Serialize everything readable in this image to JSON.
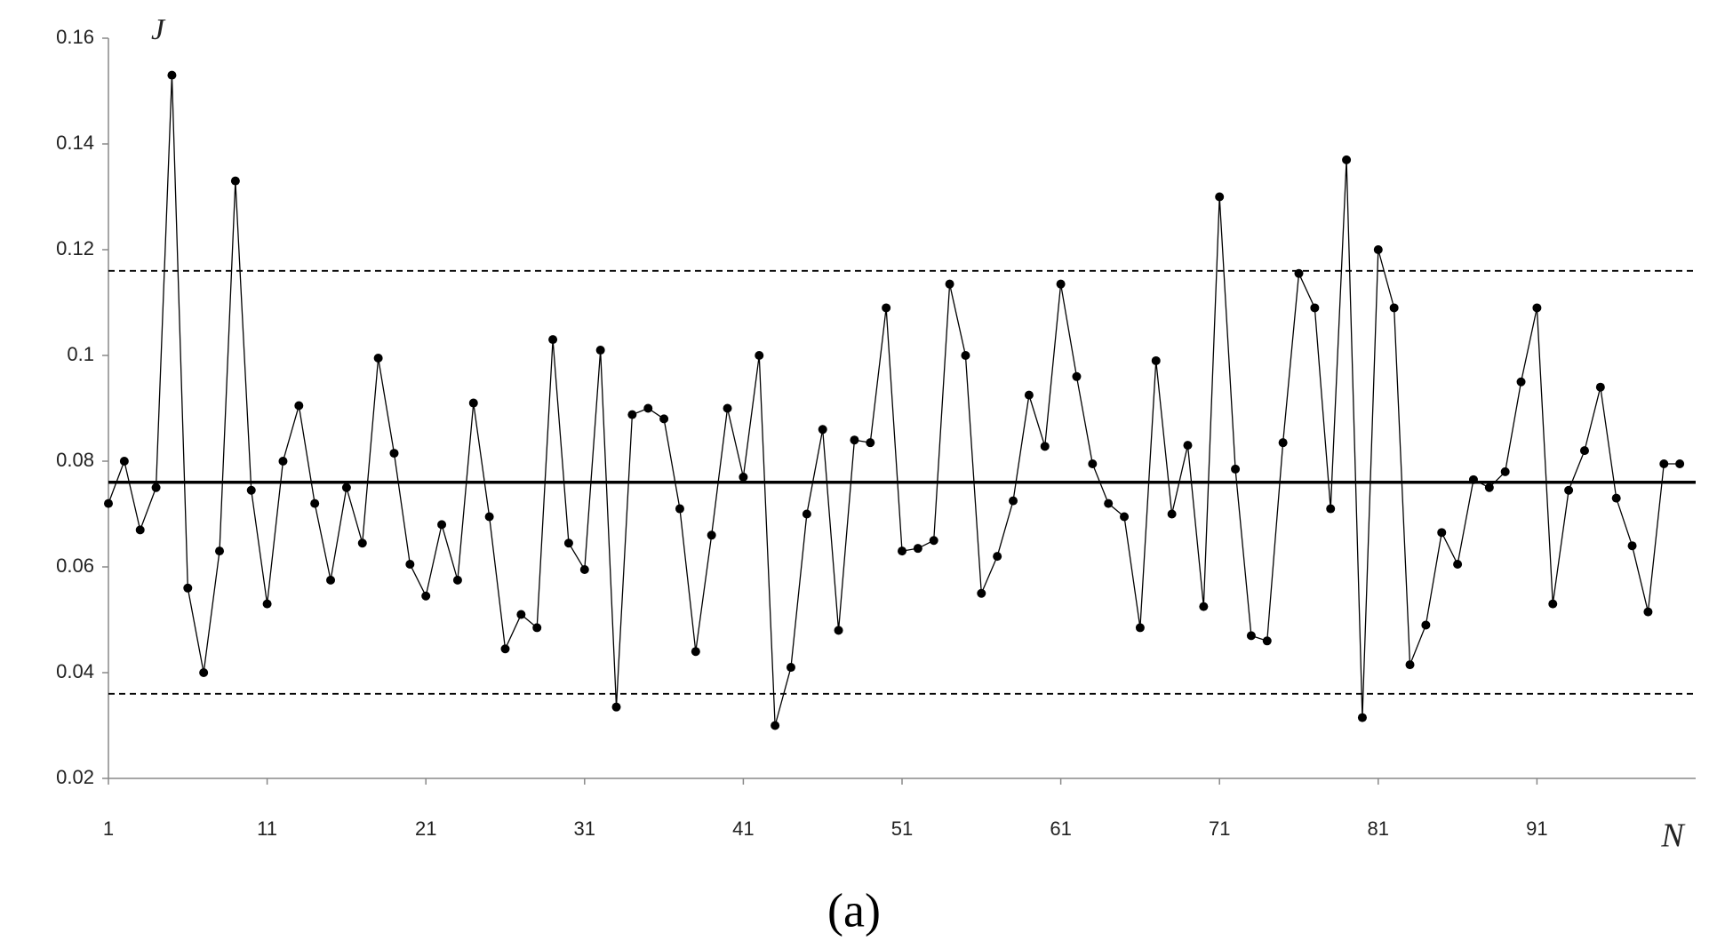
{
  "chart_data": {
    "type": "line",
    "y_label": "J",
    "x_label": "N",
    "caption": "(a)",
    "x": [
      1,
      2,
      3,
      4,
      5,
      6,
      7,
      8,
      9,
      10,
      11,
      12,
      13,
      14,
      15,
      16,
      17,
      18,
      19,
      20,
      21,
      22,
      23,
      24,
      25,
      26,
      27,
      28,
      29,
      30,
      31,
      32,
      33,
      34,
      35,
      36,
      37,
      38,
      39,
      40,
      41,
      42,
      43,
      44,
      45,
      46,
      47,
      48,
      49,
      50,
      51,
      52,
      53,
      54,
      55,
      56,
      57,
      58,
      59,
      60,
      61,
      62,
      63,
      64,
      65,
      66,
      67,
      68,
      69,
      70,
      71,
      72,
      73,
      74,
      75,
      76,
      77,
      78,
      79,
      80,
      81,
      82,
      83,
      84,
      85,
      86,
      87,
      88,
      89,
      90,
      91,
      92,
      93,
      94,
      95,
      96,
      97,
      98,
      99,
      100
    ],
    "series": [
      {
        "color": "#000000",
        "values": [
          0.072,
          0.08,
          0.067,
          0.075,
          0.153,
          0.056,
          0.04,
          0.063,
          0.133,
          0.0745,
          0.053,
          0.08,
          0.0905,
          0.072,
          0.0575,
          0.075,
          0.0645,
          0.0995,
          0.0815,
          0.0605,
          0.0545,
          0.068,
          0.0575,
          0.091,
          0.0695,
          0.0445,
          0.051,
          0.0485,
          0.103,
          0.0645,
          0.0595,
          0.101,
          0.0335,
          0.0888,
          0.09,
          0.088,
          0.071,
          0.044,
          0.066,
          0.09,
          0.077,
          0.1,
          0.03,
          0.041,
          0.07,
          0.086,
          0.048,
          0.084,
          0.0835,
          0.109,
          0.063,
          0.0635,
          0.065,
          0.1135,
          0.1,
          0.055,
          0.062,
          0.0725,
          0.0925,
          0.0828,
          0.1135,
          0.096,
          0.0795,
          0.072,
          0.0695,
          0.0485,
          0.099,
          0.07,
          0.083,
          0.0525,
          0.13,
          0.0785,
          0.047,
          0.046,
          0.0835,
          0.1155,
          0.109,
          0.071,
          0.137,
          0.0315,
          0.12,
          0.109,
          0.0415,
          0.049,
          0.0665,
          0.0605,
          0.0765,
          0.075,
          0.078,
          0.095,
          0.109,
          0.053,
          0.0745,
          0.082,
          0.094,
          0.073,
          0.064,
          0.0515,
          0.0795,
          0.0795
        ]
      }
    ],
    "reference_lines": [
      {
        "value": 0.076,
        "style": "solid"
      },
      {
        "value": 0.116,
        "style": "dashed"
      },
      {
        "value": 0.036,
        "style": "dashed"
      }
    ],
    "xlim": [
      1,
      101
    ],
    "xticks": [
      1,
      11,
      21,
      31,
      41,
      51,
      61,
      71,
      81,
      91
    ],
    "ylim": [
      0.02,
      0.16
    ],
    "yticks": [
      0.02,
      0.04,
      0.06,
      0.08,
      0.1,
      0.12,
      0.14,
      0.16
    ],
    "grid": false
  }
}
